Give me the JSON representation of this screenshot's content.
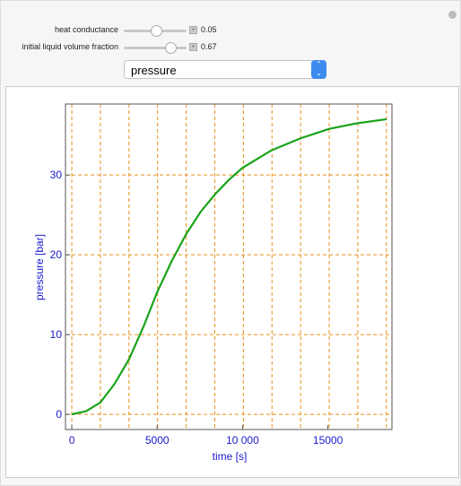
{
  "controls": {
    "sliders": [
      {
        "label": "heat conductance",
        "value": "0.05"
      },
      {
        "label": "initial liquid volume fraction",
        "value": "0.67"
      }
    ],
    "dropdown": "pressure"
  },
  "chart_data": {
    "type": "line",
    "x_label": "time [s]",
    "y_label": "pressure [bar]",
    "x": [
      0,
      840,
      1675,
      2500,
      3350,
      4200,
      5000,
      5850,
      6700,
      7550,
      8400,
      9200,
      10000,
      11700,
      13400,
      15100,
      16750,
      18430
    ],
    "series": [
      {
        "name": "pressure",
        "color": "#1aa31a",
        "values": [
          0,
          0.4,
          1.5,
          3.8,
          6.9,
          11,
          15.3,
          19.2,
          22.6,
          25.4,
          27.6,
          29.4,
          30.9,
          33.1,
          34.6,
          35.8,
          36.5,
          37.0
        ]
      }
    ],
    "xlim": [
      -370,
      18750
    ],
    "ylim": [
      -1.9,
      38.9
    ],
    "xticks": [
      0,
      5000,
      {
        "value": 10000,
        "label": "10 000"
      },
      15000
    ],
    "yticks": [
      0,
      10,
      20,
      30
    ],
    "xgrid": [
      0,
      1675,
      3350,
      5025,
      6700,
      8375,
      10050,
      11725,
      13400,
      15075,
      16750,
      18425
    ],
    "grid": true,
    "grid_color": "#e8901a",
    "axis_color": "#1a1acc"
  }
}
